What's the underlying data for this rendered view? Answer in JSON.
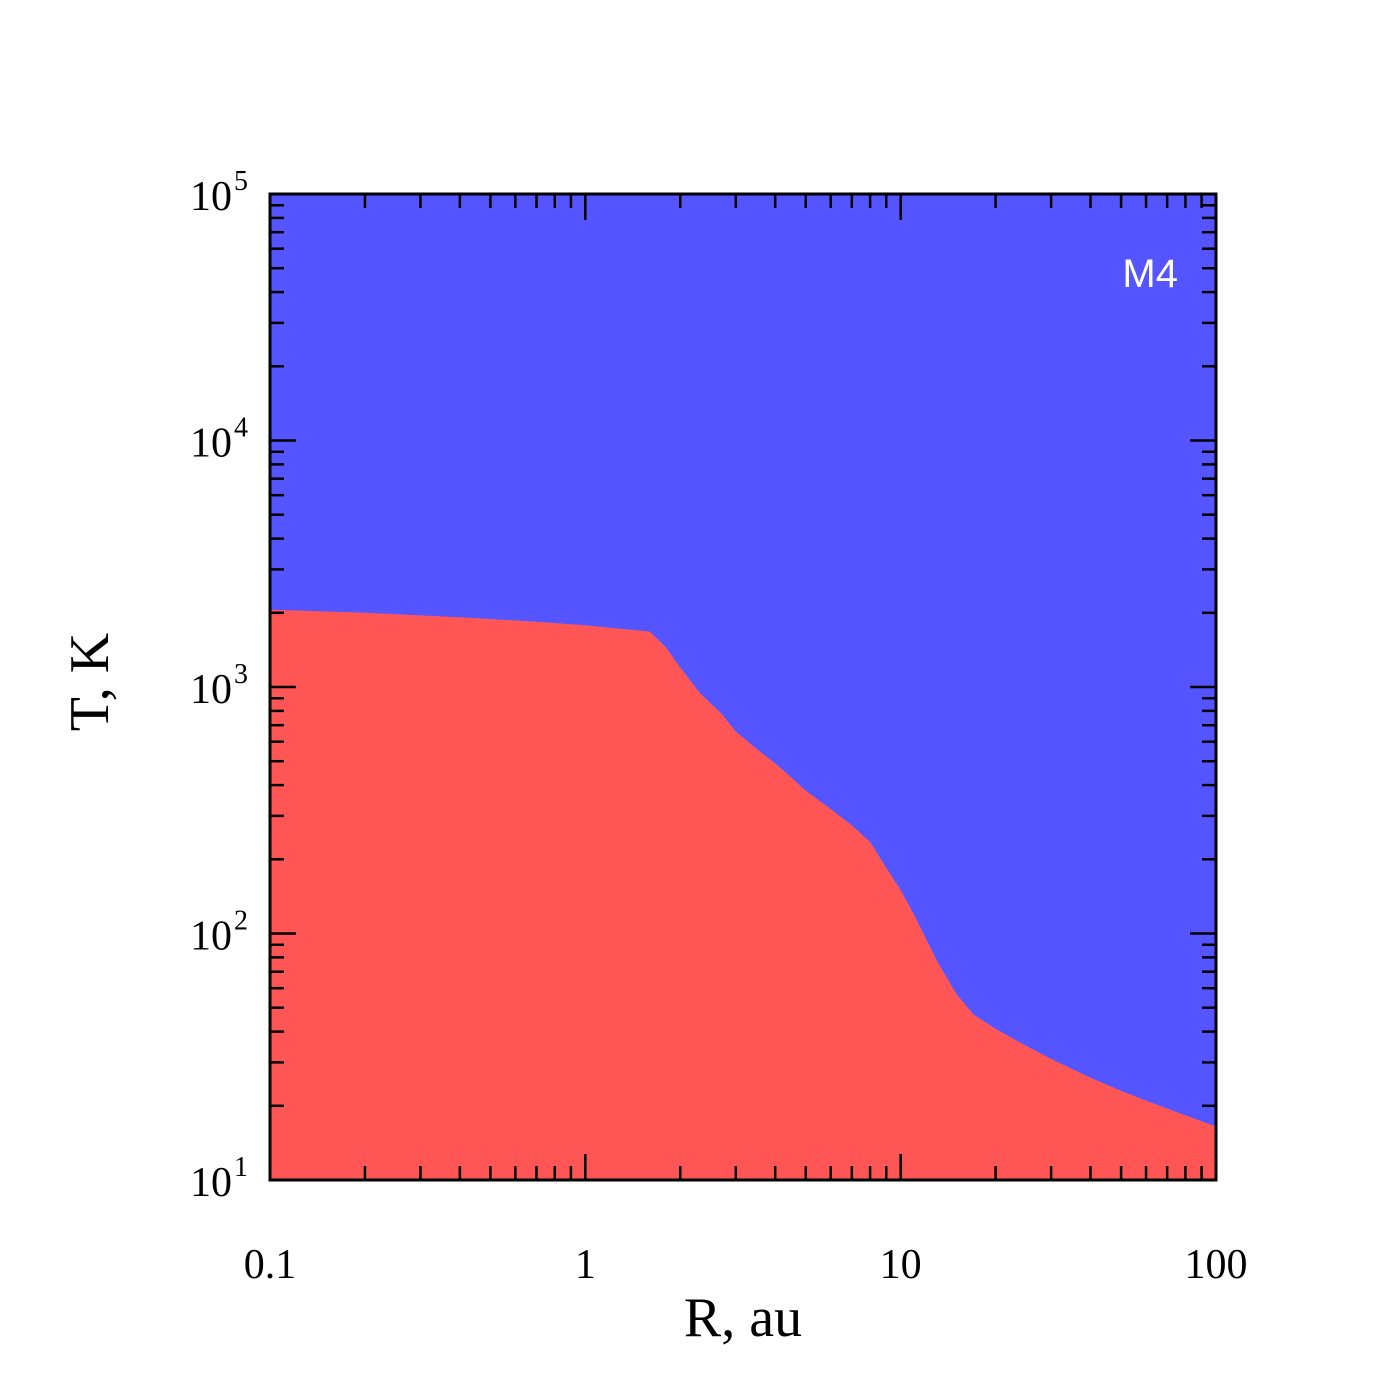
{
  "chart_data": {
    "type": "area",
    "xlabel": "R, au",
    "ylabel": "T, K",
    "xscale": "log",
    "yscale": "log",
    "xlim": [
      0.1,
      100
    ],
    "ylim": [
      10,
      100000
    ],
    "xtick_values": [
      0.1,
      1,
      10,
      100
    ],
    "xtick_labels": [
      "0.1",
      "1",
      "10",
      "100"
    ],
    "ytick_values": [
      10,
      100,
      1000,
      10000,
      100000
    ],
    "ytick_bases": [
      "10",
      "10",
      "10",
      "10",
      "10"
    ],
    "ytick_exponents": [
      "1",
      "2",
      "3",
      "4",
      "5"
    ],
    "annotation": "M4",
    "annotation_position": "top-right",
    "colors": {
      "upper_region": "#5555ff",
      "lower_region": "#ff5555",
      "axes": "#000000",
      "annotation": "#ffffff"
    },
    "boundary": {
      "x": [
        0.1,
        0.2,
        0.4,
        0.7,
        1.0,
        1.3,
        1.6,
        1.8,
        2.0,
        2.3,
        2.7,
        3.0,
        3.5,
        4.0,
        4.5,
        5.0,
        6.0,
        7.0,
        8.0,
        9.0,
        10.0,
        11.0,
        12.0,
        13.0,
        15.0,
        17.0,
        20.0,
        25.0,
        30.0,
        40.0,
        50.0,
        60.0,
        70.0,
        80.0,
        90.0,
        100.0
      ],
      "y": [
        2060,
        2000,
        1920,
        1840,
        1780,
        1720,
        1680,
        1450,
        1200,
        950,
        780,
        660,
        560,
        490,
        430,
        380,
        320,
        275,
        235,
        185,
        150,
        120,
        96,
        78,
        57,
        47,
        41,
        35,
        31,
        26,
        23,
        21,
        19.5,
        18.3,
        17.3,
        16.5
      ]
    }
  }
}
